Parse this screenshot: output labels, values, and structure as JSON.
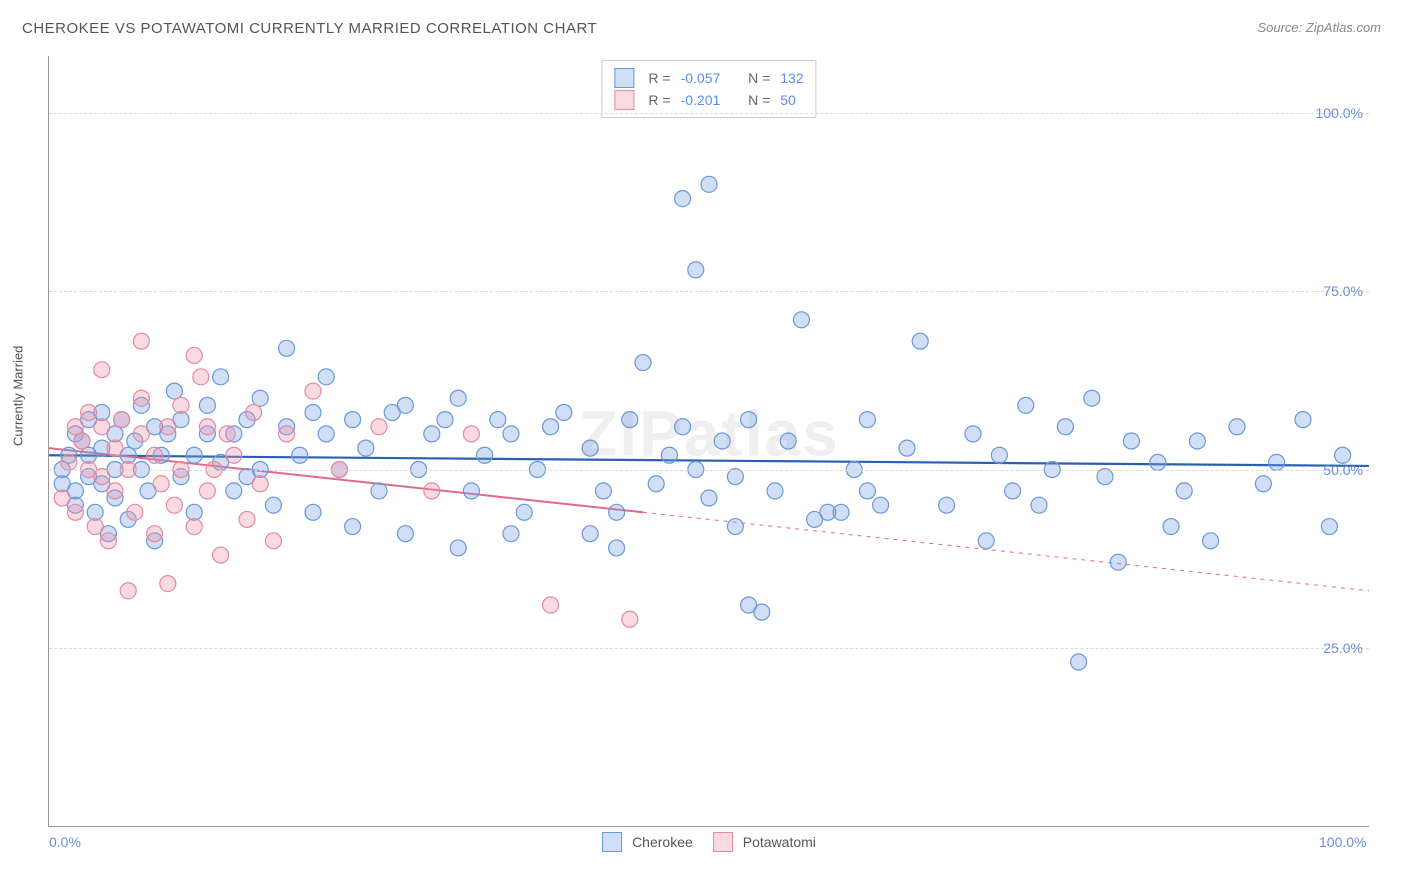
{
  "title": "CHEROKEE VS POTAWATOMI CURRENTLY MARRIED CORRELATION CHART",
  "source": "Source: ZipAtlas.com",
  "watermark": "ZIPatlas",
  "ylabel": "Currently Married",
  "chart": {
    "type": "scatter",
    "xlim": [
      0,
      100
    ],
    "ylim": [
      0,
      108
    ],
    "x_ticks": [
      {
        "v": 0,
        "label": "0.0%"
      },
      {
        "v": 100,
        "label": "100.0%"
      }
    ],
    "y_ticks": [
      {
        "v": 25,
        "label": "25.0%"
      },
      {
        "v": 50,
        "label": "50.0%"
      },
      {
        "v": 75,
        "label": "75.0%"
      },
      {
        "v": 100,
        "label": "100.0%"
      }
    ],
    "grid_color": "#d8d8d8",
    "background_color": "#ffffff",
    "marker_radius": 8,
    "marker_stroke_width": 1.2,
    "series": [
      {
        "name": "Cherokee",
        "R": "-0.057",
        "N": "132",
        "fill": "rgba(120,160,230,0.35)",
        "stroke": "#6b98d8",
        "trend": {
          "y_at_x0": 52,
          "y_at_x100": 50.5,
          "color": "#2d5fb0",
          "width": 2.2,
          "dash_after": 100
        },
        "points": [
          [
            1,
            48
          ],
          [
            1,
            50
          ],
          [
            1.5,
            52
          ],
          [
            2,
            47
          ],
          [
            2,
            55
          ],
          [
            2,
            45
          ],
          [
            2.5,
            54
          ],
          [
            3,
            49
          ],
          [
            3,
            52
          ],
          [
            3,
            57
          ],
          [
            3.5,
            44
          ],
          [
            4,
            53
          ],
          [
            4,
            48
          ],
          [
            4,
            58
          ],
          [
            4.5,
            41
          ],
          [
            5,
            55
          ],
          [
            5,
            50
          ],
          [
            5,
            46
          ],
          [
            5.5,
            57
          ],
          [
            6,
            52
          ],
          [
            6,
            43
          ],
          [
            6.5,
            54
          ],
          [
            7,
            59
          ],
          [
            7,
            50
          ],
          [
            7.5,
            47
          ],
          [
            8,
            56
          ],
          [
            8,
            40
          ],
          [
            8.5,
            52
          ],
          [
            9,
            55
          ],
          [
            9.5,
            61
          ],
          [
            10,
            49
          ],
          [
            10,
            57
          ],
          [
            11,
            44
          ],
          [
            11,
            52
          ],
          [
            12,
            55
          ],
          [
            12,
            59
          ],
          [
            13,
            51
          ],
          [
            13,
            63
          ],
          [
            14,
            47
          ],
          [
            14,
            55
          ],
          [
            15,
            57
          ],
          [
            15,
            49
          ],
          [
            16,
            60
          ],
          [
            16,
            50
          ],
          [
            17,
            45
          ],
          [
            18,
            56
          ],
          [
            18,
            67
          ],
          [
            19,
            52
          ],
          [
            20,
            44
          ],
          [
            20,
            58
          ],
          [
            21,
            55
          ],
          [
            21,
            63
          ],
          [
            22,
            50
          ],
          [
            23,
            42
          ],
          [
            23,
            57
          ],
          [
            24,
            53
          ],
          [
            25,
            47
          ],
          [
            26,
            58
          ],
          [
            27,
            41
          ],
          [
            27,
            59
          ],
          [
            28,
            50
          ],
          [
            29,
            55
          ],
          [
            30,
            57
          ],
          [
            31,
            39
          ],
          [
            31,
            60
          ],
          [
            32,
            47
          ],
          [
            33,
            52
          ],
          [
            34,
            57
          ],
          [
            35,
            41
          ],
          [
            35,
            55
          ],
          [
            36,
            44
          ],
          [
            37,
            50
          ],
          [
            38,
            56
          ],
          [
            39,
            58
          ],
          [
            41,
            53
          ],
          [
            41,
            41
          ],
          [
            42,
            47
          ],
          [
            43,
            39
          ],
          [
            43,
            44
          ],
          [
            44,
            57
          ],
          [
            45,
            65
          ],
          [
            46,
            48
          ],
          [
            47,
            52
          ],
          [
            48,
            56
          ],
          [
            48,
            88
          ],
          [
            49,
            50
          ],
          [
            49,
            78
          ],
          [
            50,
            90
          ],
          [
            50,
            46
          ],
          [
            51,
            54
          ],
          [
            52,
            42
          ],
          [
            52,
            49
          ],
          [
            53,
            57
          ],
          [
            53,
            31
          ],
          [
            54,
            30
          ],
          [
            55,
            47
          ],
          [
            56,
            54
          ],
          [
            57,
            71
          ],
          [
            58,
            43
          ],
          [
            59,
            44
          ],
          [
            60,
            44
          ],
          [
            61,
            50
          ],
          [
            62,
            57
          ],
          [
            62,
            47
          ],
          [
            63,
            45
          ],
          [
            65,
            53
          ],
          [
            66,
            68
          ],
          [
            68,
            45
          ],
          [
            70,
            55
          ],
          [
            71,
            40
          ],
          [
            72,
            52
          ],
          [
            73,
            47
          ],
          [
            74,
            59
          ],
          [
            75,
            45
          ],
          [
            76,
            50
          ],
          [
            77,
            56
          ],
          [
            78,
            23
          ],
          [
            79,
            60
          ],
          [
            80,
            49
          ],
          [
            81,
            37
          ],
          [
            82,
            54
          ],
          [
            84,
            51
          ],
          [
            85,
            42
          ],
          [
            86,
            47
          ],
          [
            87,
            54
          ],
          [
            88,
            40
          ],
          [
            90,
            56
          ],
          [
            92,
            48
          ],
          [
            93,
            51
          ],
          [
            95,
            57
          ],
          [
            97,
            42
          ],
          [
            98,
            52
          ]
        ]
      },
      {
        "name": "Potawatomi",
        "R": "-0.201",
        "N": "50",
        "fill": "rgba(240,150,170,0.35)",
        "stroke": "#e48aa0",
        "trend": {
          "y_at_x0": 53,
          "y_at_x100": 33,
          "color": "#e06a8a",
          "width": 2,
          "dash_after": 45
        },
        "points": [
          [
            1,
            46
          ],
          [
            1.5,
            51
          ],
          [
            2,
            56
          ],
          [
            2,
            44
          ],
          [
            2.5,
            54
          ],
          [
            3,
            50
          ],
          [
            3,
            58
          ],
          [
            3.5,
            42
          ],
          [
            4,
            49
          ],
          [
            4,
            56
          ],
          [
            4,
            64
          ],
          [
            4.5,
            40
          ],
          [
            5,
            53
          ],
          [
            5,
            47
          ],
          [
            5.5,
            57
          ],
          [
            6,
            50
          ],
          [
            6,
            33
          ],
          [
            6.5,
            44
          ],
          [
            7,
            55
          ],
          [
            7,
            60
          ],
          [
            7,
            68
          ],
          [
            8,
            41
          ],
          [
            8,
            52
          ],
          [
            8.5,
            48
          ],
          [
            9,
            56
          ],
          [
            9,
            34
          ],
          [
            9.5,
            45
          ],
          [
            10,
            50
          ],
          [
            10,
            59
          ],
          [
            11,
            42
          ],
          [
            11,
            66
          ],
          [
            11.5,
            63
          ],
          [
            12,
            47
          ],
          [
            12,
            56
          ],
          [
            12.5,
            50
          ],
          [
            13,
            38
          ],
          [
            13.5,
            55
          ],
          [
            14,
            52
          ],
          [
            15,
            43
          ],
          [
            15.5,
            58
          ],
          [
            16,
            48
          ],
          [
            17,
            40
          ],
          [
            18,
            55
          ],
          [
            20,
            61
          ],
          [
            22,
            50
          ],
          [
            25,
            56
          ],
          [
            29,
            47
          ],
          [
            32,
            55
          ],
          [
            38,
            31
          ],
          [
            44,
            29
          ]
        ]
      }
    ]
  },
  "legend_bottom": [
    "Cherokee",
    "Potawatomi"
  ]
}
